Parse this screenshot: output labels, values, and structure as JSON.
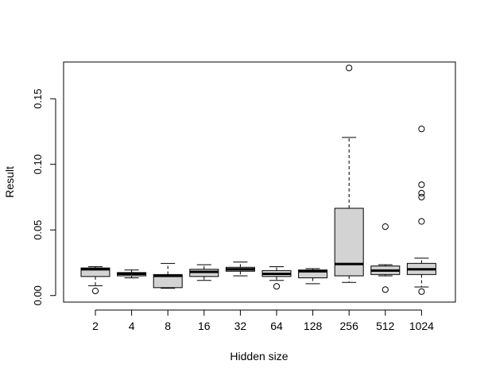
{
  "chart_data": {
    "type": "box",
    "title": "",
    "xlabel": "Hidden size",
    "ylabel": "Result",
    "ylim": [
      -0.005,
      0.178
    ],
    "yticks": [
      0.0,
      0.05,
      0.1,
      0.15
    ],
    "ytick_labels": [
      "0.00",
      "0.05",
      "0.10",
      "0.15"
    ],
    "grid": false,
    "box_fill": "#d3d3d3",
    "line_color": "#000000",
    "categories": [
      "2",
      "4",
      "8",
      "16",
      "32",
      "64",
      "128",
      "256",
      "512",
      "1024"
    ],
    "boxes": [
      {
        "category": "2",
        "whisker_low": 0.0075,
        "q1": 0.0145,
        "median": 0.02,
        "q3": 0.021,
        "whisker_high": 0.022,
        "outliers": [
          0.0035
        ]
      },
      {
        "category": "4",
        "whisker_low": 0.0135,
        "q1": 0.015,
        "median": 0.0165,
        "q3": 0.0175,
        "whisker_high": 0.0195,
        "outliers": []
      },
      {
        "category": "8",
        "whisker_low": 0.0055,
        "q1": 0.006,
        "median": 0.015,
        "q3": 0.016,
        "whisker_high": 0.0245,
        "outliers": []
      },
      {
        "category": "16",
        "whisker_low": 0.0115,
        "q1": 0.0145,
        "median": 0.018,
        "q3": 0.02,
        "whisker_high": 0.0235,
        "outliers": []
      },
      {
        "category": "32",
        "whisker_low": 0.015,
        "q1": 0.0185,
        "median": 0.02,
        "q3": 0.0215,
        "whisker_high": 0.0255,
        "outliers": []
      },
      {
        "category": "64",
        "whisker_low": 0.0115,
        "q1": 0.0145,
        "median": 0.0165,
        "q3": 0.019,
        "whisker_high": 0.022,
        "outliers": [
          0.007
        ]
      },
      {
        "category": "128",
        "whisker_low": 0.009,
        "q1": 0.0135,
        "median": 0.0185,
        "q3": 0.0195,
        "whisker_high": 0.0205,
        "outliers": []
      },
      {
        "category": "256",
        "whisker_low": 0.01,
        "q1": 0.015,
        "median": 0.024,
        "q3": 0.0665,
        "whisker_high": 0.1205,
        "outliers": [
          0.1735
        ]
      },
      {
        "category": "512",
        "whisker_low": 0.015,
        "q1": 0.016,
        "median": 0.019,
        "q3": 0.0225,
        "whisker_high": 0.0235,
        "outliers": [
          0.0045,
          0.0525
        ]
      },
      {
        "category": "1024",
        "whisker_low": 0.0065,
        "q1": 0.016,
        "median": 0.02,
        "q3": 0.0245,
        "whisker_high": 0.0285,
        "outliers": [
          0.003,
          0.0565,
          0.075,
          0.078,
          0.0845,
          0.127
        ]
      }
    ]
  }
}
